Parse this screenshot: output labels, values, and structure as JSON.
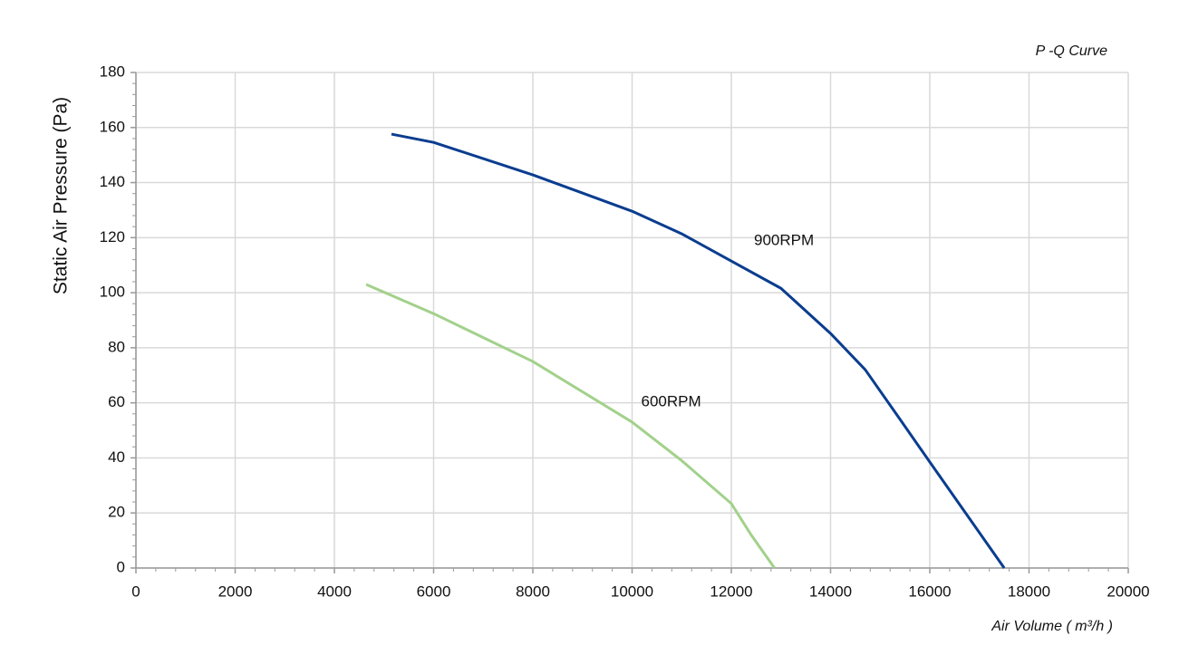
{
  "chart_data": {
    "type": "line",
    "title": "P -Q Curve",
    "x_label": "Air Volume ( m³/h )",
    "y_label": "Static Air Pressure  (Pa)",
    "xlim": [
      0,
      20000
    ],
    "ylim": [
      0,
      180
    ],
    "xticks": [
      0,
      2000,
      4000,
      6000,
      8000,
      10000,
      12000,
      14000,
      16000,
      18000,
      20000
    ],
    "yticks": [
      0,
      20,
      40,
      60,
      80,
      100,
      120,
      140,
      160,
      180
    ],
    "grid": true,
    "series": [
      {
        "name": "900RPM",
        "color": "#0a3d8f",
        "x": [
          5150,
          6000,
          8000,
          10000,
          11000,
          12000,
          13000,
          14000,
          14700,
          15400,
          16000,
          17500
        ],
        "values": [
          157.6,
          154.6,
          142.8,
          129.6,
          121.4,
          111.5,
          101.6,
          85.2,
          72,
          54,
          38.5,
          0
        ]
      },
      {
        "name": "600RPM",
        "color": "#a2d18b",
        "x": [
          4640,
          6000,
          8000,
          10000,
          11000,
          12000,
          12400,
          12870
        ],
        "values": [
          103,
          92.4,
          75,
          53,
          39,
          23.4,
          12,
          0
        ]
      }
    ]
  }
}
